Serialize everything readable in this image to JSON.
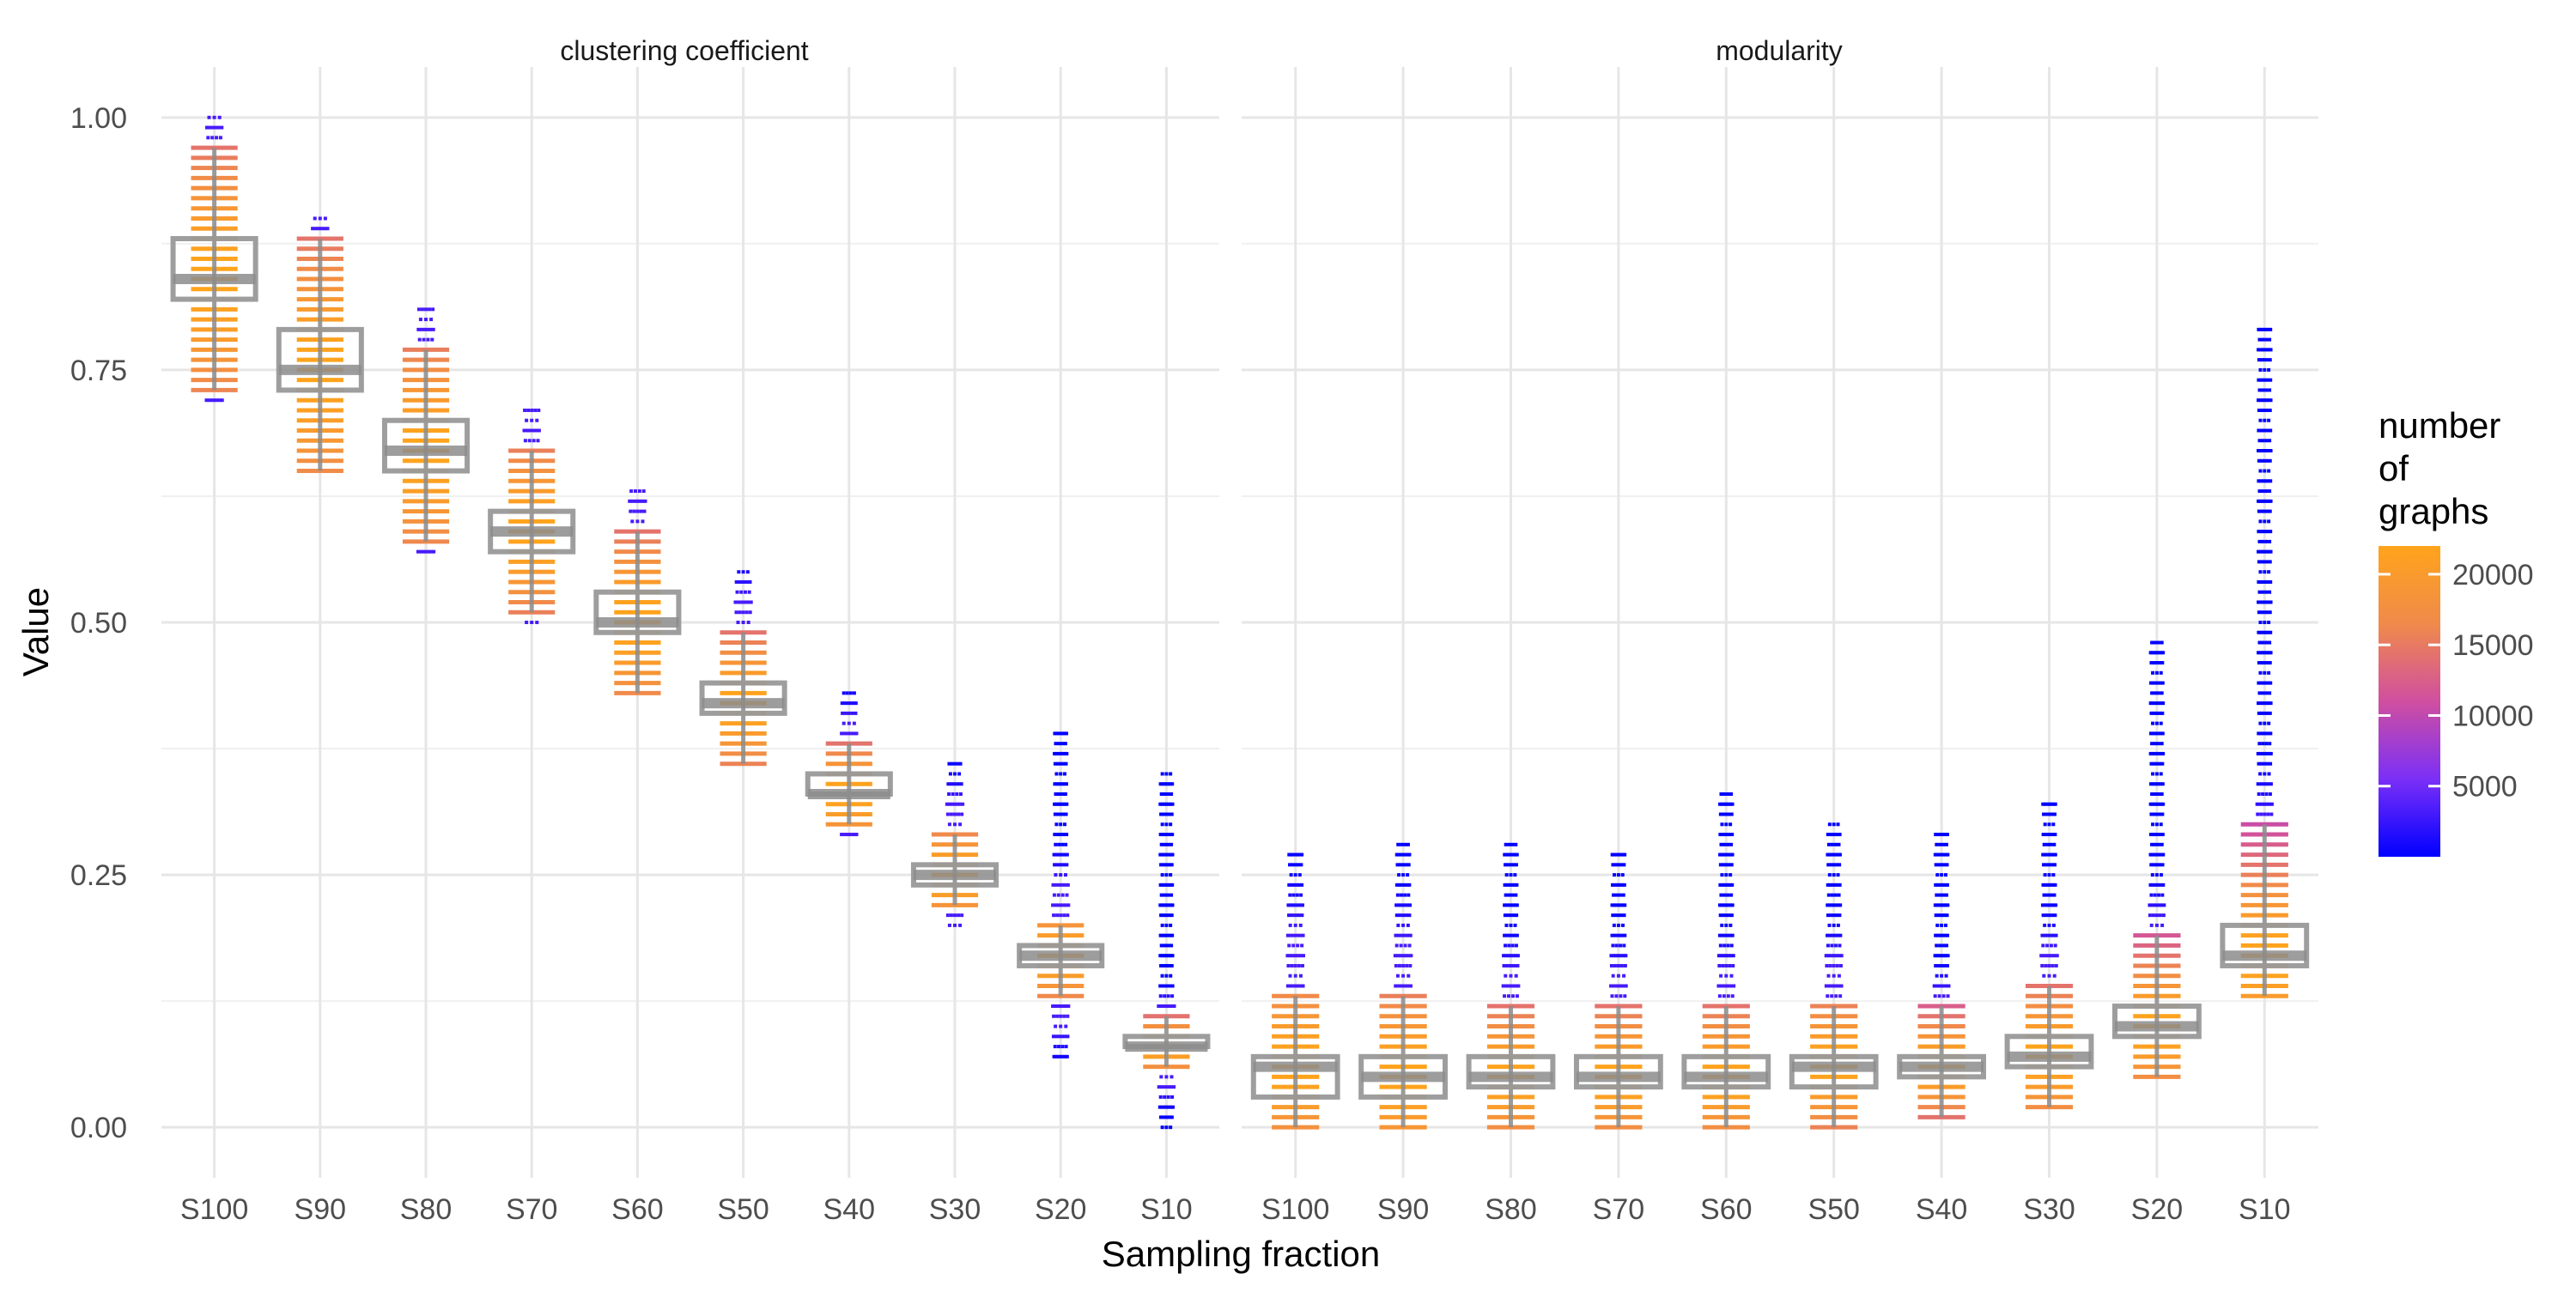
{
  "chart_data": {
    "type": "boxplot",
    "facets": [
      "clustering coefficient",
      "modularity"
    ],
    "xlabel": "Sampling fraction",
    "ylabel": "Value",
    "categories": [
      "S100",
      "S90",
      "S80",
      "S70",
      "S60",
      "S50",
      "S40",
      "S30",
      "S20",
      "S10"
    ],
    "ylim": [
      -0.05,
      1.05
    ],
    "yticks": [
      0.0,
      0.25,
      0.5,
      0.75,
      1.0
    ],
    "ytick_labels": [
      "0.00",
      "0.25",
      "0.50",
      "0.75",
      "1.00"
    ],
    "legend": {
      "title_lines": [
        "number",
        "of",
        "graphs"
      ],
      "placement": "right",
      "min": 0,
      "max": 22000,
      "ticks": [
        5000,
        10000,
        15000,
        20000
      ],
      "tick_labels": [
        "5000",
        "10000",
        "15000",
        "20000"
      ],
      "colors": [
        "#0000ff",
        "#7b2ff7",
        "#d04fa0",
        "#f08a4b",
        "#ffa41b"
      ]
    },
    "box_color": "#999999",
    "grid": true,
    "series": [
      {
        "facet": "clustering coefficient",
        "boxes": [
          {
            "category": "S100",
            "q1": 0.82,
            "median": 0.84,
            "q3": 0.88,
            "whisker_low": 0.73,
            "whisker_high": 0.97,
            "point_min": 0.72,
            "point_max": 1.0
          },
          {
            "category": "S90",
            "q1": 0.73,
            "median": 0.75,
            "q3": 0.79,
            "whisker_low": 0.65,
            "whisker_high": 0.88,
            "point_min": 0.65,
            "point_max": 0.9
          },
          {
            "category": "S80",
            "q1": 0.65,
            "median": 0.67,
            "q3": 0.7,
            "whisker_low": 0.58,
            "whisker_high": 0.77,
            "point_min": 0.57,
            "point_max": 0.81
          },
          {
            "category": "S70",
            "q1": 0.57,
            "median": 0.59,
            "q3": 0.61,
            "whisker_low": 0.51,
            "whisker_high": 0.67,
            "point_min": 0.5,
            "point_max": 0.71
          },
          {
            "category": "S60",
            "q1": 0.49,
            "median": 0.5,
            "q3": 0.53,
            "whisker_low": 0.43,
            "whisker_high": 0.59,
            "point_min": 0.43,
            "point_max": 0.63
          },
          {
            "category": "S50",
            "q1": 0.41,
            "median": 0.42,
            "q3": 0.44,
            "whisker_low": 0.36,
            "whisker_high": 0.49,
            "point_min": 0.36,
            "point_max": 0.55
          },
          {
            "category": "S40",
            "q1": 0.33,
            "median": 0.33,
            "q3": 0.35,
            "whisker_low": 0.3,
            "whisker_high": 0.38,
            "point_min": 0.29,
            "point_max": 0.43
          },
          {
            "category": "S30",
            "q1": 0.24,
            "median": 0.25,
            "q3": 0.26,
            "whisker_low": 0.22,
            "whisker_high": 0.29,
            "point_min": 0.2,
            "point_max": 0.36
          },
          {
            "category": "S20",
            "q1": 0.16,
            "median": 0.17,
            "q3": 0.18,
            "whisker_low": 0.13,
            "whisker_high": 0.2,
            "point_min": 0.07,
            "point_max": 0.39
          },
          {
            "category": "S10",
            "q1": 0.08,
            "median": 0.08,
            "q3": 0.09,
            "whisker_low": 0.06,
            "whisker_high": 0.11,
            "point_min": 0.0,
            "point_max": 0.35
          }
        ]
      },
      {
        "facet": "modularity",
        "boxes": [
          {
            "category": "S100",
            "q1": 0.03,
            "median": 0.06,
            "q3": 0.07,
            "whisker_low": 0.0,
            "whisker_high": 0.13,
            "point_min": 0.0,
            "point_max": 0.27
          },
          {
            "category": "S90",
            "q1": 0.03,
            "median": 0.05,
            "q3": 0.07,
            "whisker_low": 0.0,
            "whisker_high": 0.13,
            "point_min": 0.0,
            "point_max": 0.28
          },
          {
            "category": "S80",
            "q1": 0.04,
            "median": 0.05,
            "q3": 0.07,
            "whisker_low": 0.0,
            "whisker_high": 0.12,
            "point_min": 0.0,
            "point_max": 0.28
          },
          {
            "category": "S70",
            "q1": 0.04,
            "median": 0.05,
            "q3": 0.07,
            "whisker_low": 0.0,
            "whisker_high": 0.12,
            "point_min": 0.0,
            "point_max": 0.27
          },
          {
            "category": "S60",
            "q1": 0.04,
            "median": 0.05,
            "q3": 0.07,
            "whisker_low": 0.0,
            "whisker_high": 0.12,
            "point_min": 0.0,
            "point_max": 0.33
          },
          {
            "category": "S50",
            "q1": 0.04,
            "median": 0.06,
            "q3": 0.07,
            "whisker_low": 0.0,
            "whisker_high": 0.12,
            "point_min": 0.0,
            "point_max": 0.3
          },
          {
            "category": "S40",
            "q1": 0.05,
            "median": 0.06,
            "q3": 0.07,
            "whisker_low": 0.01,
            "whisker_high": 0.12,
            "point_min": 0.01,
            "point_max": 0.29
          },
          {
            "category": "S30",
            "q1": 0.06,
            "median": 0.07,
            "q3": 0.09,
            "whisker_low": 0.02,
            "whisker_high": 0.14,
            "point_min": 0.02,
            "point_max": 0.32
          },
          {
            "category": "S20",
            "q1": 0.09,
            "median": 0.1,
            "q3": 0.12,
            "whisker_low": 0.05,
            "whisker_high": 0.19,
            "point_min": 0.05,
            "point_max": 0.48
          },
          {
            "category": "S10",
            "q1": 0.16,
            "median": 0.17,
            "q3": 0.2,
            "whisker_low": 0.13,
            "whisker_high": 0.3,
            "point_min": 0.13,
            "point_max": 0.79
          }
        ]
      }
    ]
  }
}
